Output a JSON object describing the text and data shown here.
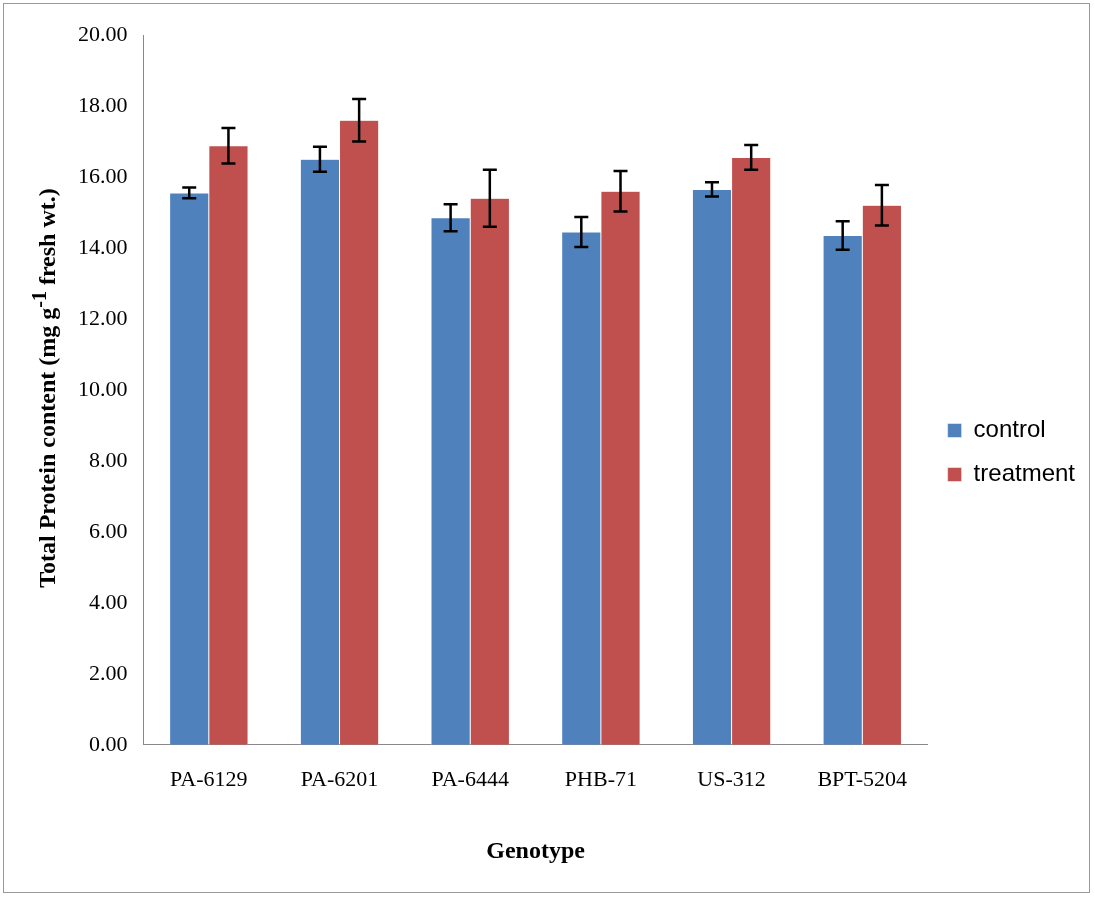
{
  "chart_data": {
    "type": "bar",
    "xlabel": "Genotype",
    "ylabel": "Total  Protein content (mg g$^{-1}$ fresh wt.)",
    "categories": [
      "PA-6129",
      "PA-6201",
      "PA-6444",
      "PHB-71",
      "US-312",
      "BPT-5204"
    ],
    "series": [
      {
        "name": "control",
        "color": "#4f81bd",
        "values": [
          15.55,
          16.5,
          14.85,
          14.45,
          15.65,
          14.35
        ],
        "errors": [
          0.15,
          0.35,
          0.38,
          0.42,
          0.2,
          0.4
        ]
      },
      {
        "name": "treatment",
        "color": "#c0504d",
        "values": [
          16.88,
          17.6,
          15.4,
          15.6,
          16.55,
          15.2
        ],
        "errors": [
          0.5,
          0.6,
          0.8,
          0.57,
          0.35,
          0.57
        ]
      }
    ],
    "ylim": [
      0,
      20
    ],
    "yticks": [
      {
        "value": 0,
        "label": "0.00"
      },
      {
        "value": 2,
        "label": "2.00"
      },
      {
        "value": 4,
        "label": "4.00"
      },
      {
        "value": 6,
        "label": "6.00"
      },
      {
        "value": 8,
        "label": "8.00"
      },
      {
        "value": 10,
        "label": "10.00"
      },
      {
        "value": 12,
        "label": "12.00"
      },
      {
        "value": 14,
        "label": "14.00"
      },
      {
        "value": 16,
        "label": "16.00"
      },
      {
        "value": 18,
        "label": "18.00"
      },
      {
        "value": 20,
        "label": "20.00"
      }
    ],
    "grid": false,
    "legend": "right"
  }
}
